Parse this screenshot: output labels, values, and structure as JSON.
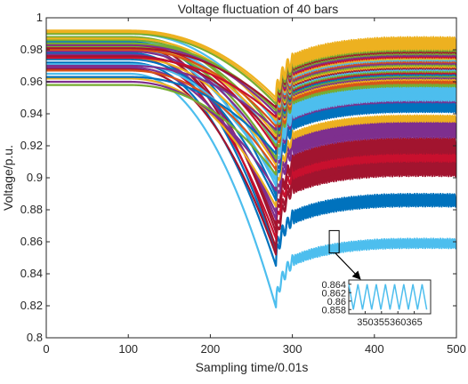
{
  "chart_data": {
    "type": "line",
    "title": "Voltage fluctuation of 40 bars",
    "xlabel": "Sampling time/0.01s",
    "ylabel": "Voltage/p.u.",
    "xlim": [
      0,
      500
    ],
    "ylim": [
      0.8,
      1.0
    ],
    "xticks": [
      "0",
      "100",
      "200",
      "300",
      "400",
      "500"
    ],
    "yticks": [
      "0.8",
      "0.82",
      "0.84",
      "0.86",
      "0.88",
      "0.9",
      "0.92",
      "0.94",
      "0.96",
      "0.98",
      "1"
    ],
    "grid": false,
    "legend": "none",
    "disturbance": {
      "start_x": 100,
      "dip_x": 280,
      "recovery_x": 300,
      "end_x": 500
    },
    "series_count": 40,
    "series": [
      {
        "color": "#4dbeee",
        "initial": 0.965,
        "min": 0.819,
        "final": 0.86,
        "oscillation_amplitude": 0.003
      },
      {
        "color": "#0072bd",
        "initial": 0.972,
        "min": 0.845,
        "final": 0.888,
        "oscillation_amplitude": 0.003
      },
      {
        "color": "#0072bd",
        "initial": 0.978,
        "min": 0.853,
        "final": 0.886,
        "oscillation_amplitude": 0.003
      },
      {
        "color": "#a2142f",
        "initial": 0.968,
        "min": 0.852,
        "final": 0.906,
        "oscillation_amplitude": 0.004
      },
      {
        "color": "#a2142f",
        "initial": 0.983,
        "min": 0.856,
        "final": 0.91,
        "oscillation_amplitude": 0.004
      },
      {
        "color": "#c8102e",
        "initial": 0.975,
        "min": 0.862,
        "final": 0.915,
        "oscillation_amplitude": 0.004
      },
      {
        "color": "#a2142f",
        "initial": 0.985,
        "min": 0.866,
        "final": 0.92,
        "oscillation_amplitude": 0.004
      },
      {
        "color": "#a2142f",
        "initial": 0.981,
        "min": 0.87,
        "final": 0.922,
        "oscillation_amplitude": 0.004
      },
      {
        "color": "#7e2f8e",
        "initial": 0.977,
        "min": 0.874,
        "final": 0.93,
        "oscillation_amplitude": 0.004
      },
      {
        "color": "#7e2f8e",
        "initial": 0.969,
        "min": 0.878,
        "final": 0.934,
        "oscillation_amplitude": 0.004
      },
      {
        "color": "#edb120",
        "initial": 0.962,
        "min": 0.882,
        "final": 0.938,
        "oscillation_amplitude": 0.002
      },
      {
        "color": "#0072bd",
        "initial": 0.974,
        "min": 0.886,
        "final": 0.944,
        "oscillation_amplitude": 0.002
      },
      {
        "color": "#0072bd",
        "initial": 0.985,
        "min": 0.889,
        "final": 0.946,
        "oscillation_amplitude": 0.002
      },
      {
        "color": "#7e2f8e",
        "initial": 0.96,
        "min": 0.892,
        "final": 0.95,
        "oscillation_amplitude": 0.002
      },
      {
        "color": "#4dbeee",
        "initial": 0.98,
        "min": 0.895,
        "final": 0.952,
        "oscillation_amplitude": 0.003
      },
      {
        "color": "#4dbeee",
        "initial": 0.971,
        "min": 0.898,
        "final": 0.955,
        "oscillation_amplitude": 0.003
      },
      {
        "color": "#4dbeee",
        "initial": 0.986,
        "min": 0.9,
        "final": 0.957,
        "oscillation_amplitude": 0.003
      },
      {
        "color": "#77ac30",
        "initial": 0.958,
        "min": 0.902,
        "final": 0.96,
        "oscillation_amplitude": 0.002
      },
      {
        "color": "#d95319",
        "initial": 0.967,
        "min": 0.905,
        "final": 0.962,
        "oscillation_amplitude": 0.002
      },
      {
        "color": "#edb120",
        "initial": 0.975,
        "min": 0.908,
        "final": 0.964,
        "oscillation_amplitude": 0.002
      },
      {
        "color": "#7e2f8e",
        "initial": 0.979,
        "min": 0.91,
        "final": 0.965,
        "oscillation_amplitude": 0.002
      },
      {
        "color": "#77ac30",
        "initial": 0.982,
        "min": 0.912,
        "final": 0.966,
        "oscillation_amplitude": 0.002
      },
      {
        "color": "#0072bd",
        "initial": 0.963,
        "min": 0.915,
        "final": 0.967,
        "oscillation_amplitude": 0.002
      },
      {
        "color": "#c8102e",
        "initial": 0.983,
        "min": 0.918,
        "final": 0.968,
        "oscillation_amplitude": 0.002
      },
      {
        "color": "#77ac30",
        "initial": 0.988,
        "min": 0.92,
        "final": 0.969,
        "oscillation_amplitude": 0.002
      },
      {
        "color": "#4dbeee",
        "initial": 0.984,
        "min": 0.922,
        "final": 0.97,
        "oscillation_amplitude": 0.002
      },
      {
        "color": "#a2142f",
        "initial": 0.976,
        "min": 0.924,
        "final": 0.971,
        "oscillation_amplitude": 0.002
      },
      {
        "color": "#edb120",
        "initial": 0.981,
        "min": 0.926,
        "final": 0.972,
        "oscillation_amplitude": 0.002
      },
      {
        "color": "#77ac30",
        "initial": 0.986,
        "min": 0.928,
        "final": 0.973,
        "oscillation_amplitude": 0.002
      },
      {
        "color": "#7e2f8e",
        "initial": 0.97,
        "min": 0.93,
        "final": 0.974,
        "oscillation_amplitude": 0.002
      },
      {
        "color": "#d95319",
        "initial": 0.98,
        "min": 0.932,
        "final": 0.975,
        "oscillation_amplitude": 0.002
      },
      {
        "color": "#4dbeee",
        "initial": 0.99,
        "min": 0.934,
        "final": 0.976,
        "oscillation_amplitude": 0.002
      },
      {
        "color": "#edb120",
        "initial": 0.987,
        "min": 0.936,
        "final": 0.977,
        "oscillation_amplitude": 0.002
      },
      {
        "color": "#c8102e",
        "initial": 0.975,
        "min": 0.938,
        "final": 0.978,
        "oscillation_amplitude": 0.002
      },
      {
        "color": "#7e2f8e",
        "initial": 0.983,
        "min": 0.94,
        "final": 0.979,
        "oscillation_amplitude": 0.002
      },
      {
        "color": "#77ac30",
        "initial": 0.984,
        "min": 0.942,
        "final": 0.98,
        "oscillation_amplitude": 0.002
      },
      {
        "color": "#a2142f",
        "initial": 0.981,
        "min": 0.944,
        "final": 0.981,
        "oscillation_amplitude": 0.002
      },
      {
        "color": "#77ac30",
        "initial": 0.99,
        "min": 0.946,
        "final": 0.982,
        "oscillation_amplitude": 0.002
      },
      {
        "color": "#edb120",
        "initial": 0.991,
        "min": 0.948,
        "final": 0.984,
        "oscillation_amplitude": 0.003
      },
      {
        "color": "#edb120",
        "initial": 0.992,
        "min": 0.95,
        "final": 0.986,
        "oscillation_amplitude": 0.003
      }
    ],
    "inset": {
      "xlim": [
        345,
        370
      ],
      "ylim": [
        0.857,
        0.865
      ],
      "xticks": [
        "350",
        "355",
        "360",
        "365"
      ],
      "yticks": [
        "0.864",
        "0.862",
        "0.86",
        "0.858"
      ],
      "series_color": "#4dbeee",
      "oscillation_min": 0.858,
      "oscillation_max": 0.864,
      "period": 2.8,
      "zoom_box": {
        "xlim": [
          345,
          357
        ],
        "ylim": [
          0.853,
          0.867
        ]
      }
    }
  }
}
